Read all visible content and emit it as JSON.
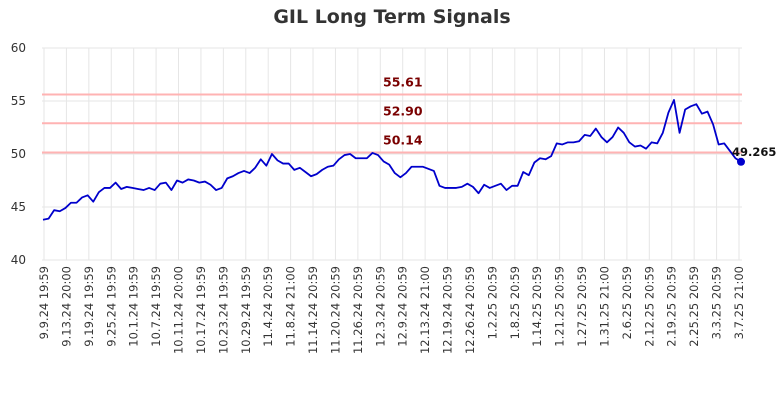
{
  "chart_data": {
    "type": "line",
    "title": "GIL Long Term Signals",
    "xlabel": "",
    "ylabel": "",
    "ylim": [
      40,
      60
    ],
    "yticks": [
      40,
      45,
      50,
      55,
      60
    ],
    "grid": true,
    "x_tick_labels": [
      "9.9.24 19:59",
      "9.13.24 20:00",
      "9.19.24 19:59",
      "9.25.24 19:59",
      "10.1.24 19:59",
      "10.7.24 19:59",
      "10.11.24 20:00",
      "10.17.24 19:59",
      "10.23.24 19:59",
      "10.29.24 19:59",
      "11.4.24 20:59",
      "11.8.24 21:00",
      "11.14.24 20:59",
      "11.20.24 20:59",
      "11.26.24 20:59",
      "12.3.24 20:59",
      "12.9.24 20:59",
      "12.13.24 21:00",
      "12.19.24 20:59",
      "12.26.24 20:59",
      "1.2.25 20:59",
      "1.8.25 20:59",
      "1.14.25 20:59",
      "1.21.25 20:59",
      "1.27.25 20:59",
      "1.31.25 21:00",
      "2.6.25 20:59",
      "2.12.25 20:59",
      "2.19.25 20:59",
      "2.25.25 20:59",
      "3.3.25 20:59",
      "3.7.25 21:00"
    ],
    "series": [
      {
        "values": [
          43.8,
          43.9,
          44.7,
          44.6,
          44.9,
          45.4,
          45.4,
          45.9,
          46.1,
          45.5,
          46.4,
          46.8,
          46.8,
          47.3,
          46.7,
          46.9,
          46.8,
          46.7,
          46.6,
          46.8,
          46.6,
          47.2,
          47.3,
          46.6,
          47.5,
          47.3,
          47.6,
          47.5,
          47.3,
          47.4,
          47.1,
          46.6,
          46.8,
          47.7,
          47.9,
          48.2,
          48.4,
          48.2,
          48.7,
          49.5,
          48.9,
          50.0,
          49.4,
          49.1,
          49.1,
          48.5,
          48.7,
          48.3,
          47.9,
          48.1,
          48.5,
          48.8,
          48.9,
          49.5,
          49.9,
          50.0,
          49.6,
          49.6,
          49.6,
          50.1,
          49.9,
          49.3,
          49.0,
          48.2,
          47.8,
          48.2,
          48.8,
          48.8,
          48.8,
          48.6,
          48.4,
          47.0,
          46.8,
          46.8,
          46.8,
          46.9,
          47.2,
          46.9,
          46.3,
          47.1,
          46.8,
          47.0,
          47.2,
          46.6,
          47.0,
          47.0,
          48.3,
          48.0,
          49.2,
          49.6,
          49.5,
          49.8,
          51.0,
          50.9,
          51.1,
          51.1,
          51.2,
          51.8,
          51.7,
          52.4,
          51.6,
          51.1,
          51.6,
          52.5,
          52.0,
          51.1,
          50.7,
          50.8,
          50.5,
          51.1,
          51.0,
          52.0,
          53.9,
          55.1,
          52.0,
          54.2,
          54.5,
          54.7,
          53.8,
          54.0,
          52.8,
          50.9,
          51.0,
          50.3,
          49.6,
          49.265
        ]
      }
    ],
    "colors": {
      "line": "#0000cc",
      "hline": "#ffb3b3",
      "hline_label": "#7a0000",
      "grid": "#e6e6e6",
      "axis_text": "#333333"
    },
    "horizontal_lines": [
      {
        "value": 55.61,
        "label": "55.61"
      },
      {
        "value": 52.9,
        "label": "52.90"
      },
      {
        "value": 50.14,
        "label": "50.14"
      }
    ],
    "last_point": {
      "value": 49.265,
      "label": "49.265"
    }
  }
}
